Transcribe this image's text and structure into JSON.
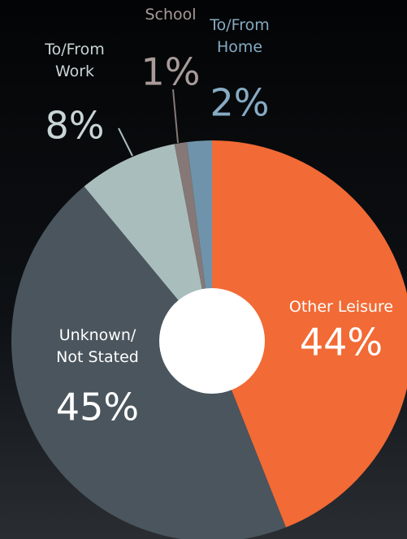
{
  "chart_data": {
    "type": "pie",
    "categories": [
      "Other Leisure",
      "Unknown/\nNot Stated",
      "To/From\nWork",
      "To/From\nSchool",
      "To/From\nHome"
    ],
    "values": [
      44,
      45,
      8,
      1,
      2
    ],
    "value_labels": [
      "44%",
      "45%",
      "8%",
      "1%",
      "2%"
    ],
    "colors": [
      "#f26a35",
      "#4a555d",
      "#a9bdbd",
      "#857876",
      "#6f93aa"
    ]
  }
}
